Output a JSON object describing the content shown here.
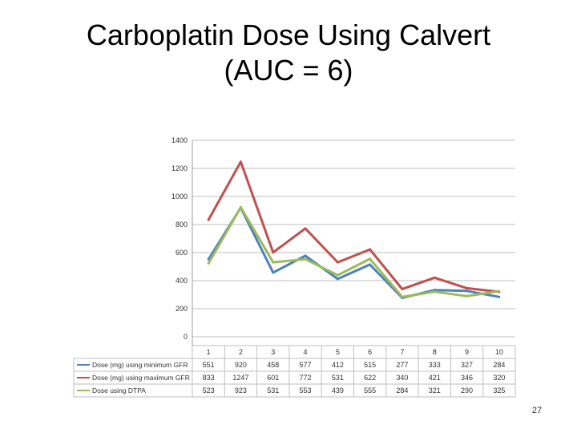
{
  "slide": {
    "title_line1": "Carboplatin Dose Using Calvert",
    "title_line2": "(AUC = 6)",
    "page_number": "27"
  },
  "chart_data": {
    "type": "line",
    "title": "",
    "xlabel": "",
    "ylabel": "",
    "categories": [
      "1",
      "2",
      "3",
      "4",
      "5",
      "6",
      "7",
      "8",
      "9",
      "10"
    ],
    "ylim": [
      0,
      1400
    ],
    "yticks": [
      "0",
      "200",
      "400",
      "600",
      "800",
      "1000",
      "1200",
      "1400"
    ],
    "grid": "horizontal",
    "legend": "data-table-left",
    "series": [
      {
        "name": "Dose (mg) using minimum GFR",
        "color": "#4f81bd",
        "values": [
          551,
          920,
          458,
          577,
          412,
          515,
          277,
          333,
          327,
          284
        ]
      },
      {
        "name": "Dose (mg) using maximum GFR",
        "color": "#c0504d",
        "values": [
          833,
          1247,
          601,
          772,
          531,
          622,
          340,
          421,
          346,
          320
        ]
      },
      {
        "name": "Dose using DTPA",
        "color": "#9bbb59",
        "values": [
          523,
          923,
          531,
          553,
          439,
          555,
          284,
          321,
          290,
          325
        ]
      }
    ]
  }
}
